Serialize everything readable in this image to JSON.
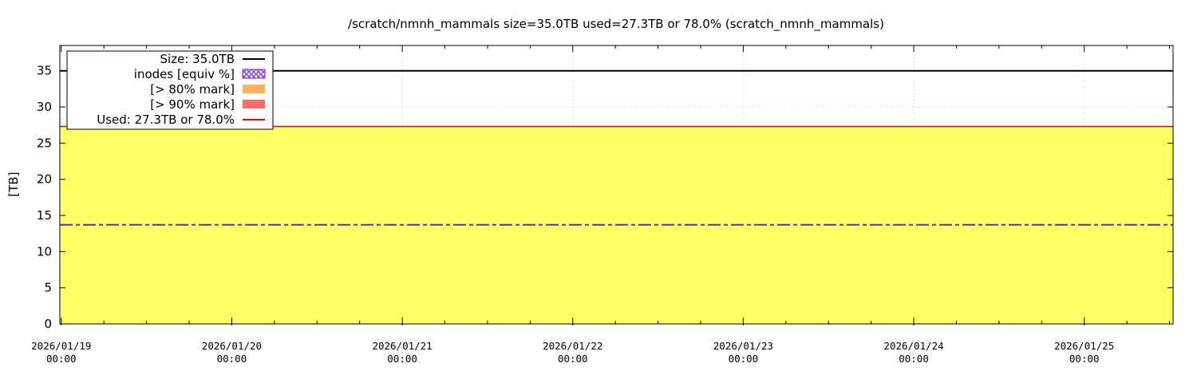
{
  "chart_data": {
    "type": "area",
    "title": "/scratch/nmnh_mammals size=35.0TB used=27.3TB or 78.0% (scratch_nmnh_mammals)",
    "ylabel": "[TB]",
    "xlabel": "",
    "ylim": [
      0,
      38.5
    ],
    "yticks": [
      0,
      5,
      10,
      15,
      20,
      25,
      30,
      35
    ],
    "xlim": [
      "2026/01/18 23:48",
      "2026/01/25 12:30"
    ],
    "xticks": [
      {
        "date": "2026/01/19",
        "time": "00:00",
        "pos": "2026/01/19 00:00"
      },
      {
        "date": "2026/01/20",
        "time": "00:00",
        "pos": "2026/01/20 00:00"
      },
      {
        "date": "2026/01/21",
        "time": "00:00",
        "pos": "2026/01/21 00:00"
      },
      {
        "date": "2026/01/22",
        "time": "00:00",
        "pos": "2026/01/22 00:00"
      },
      {
        "date": "2026/01/23",
        "time": "00:00",
        "pos": "2026/01/23 00:00"
      },
      {
        "date": "2026/01/24",
        "time": "00:00",
        "pos": "2026/01/24 00:00"
      },
      {
        "date": "2026/01/25",
        "time": "00:00",
        "pos": "2026/01/25 00:00"
      }
    ],
    "grid": true,
    "legend_position": "top-left",
    "series": [
      {
        "name": "Size: 35.0TB",
        "kind": "line",
        "color": "#000000",
        "x": [
          "2026/01/18 23:48",
          "2026/01/25 12:30"
        ],
        "y": [
          35.0,
          35.0
        ]
      },
      {
        "name": "Used: 27.3TB or 78.0%",
        "kind": "area-line",
        "color": "#ff0000",
        "fill": "#ffff66",
        "x": [
          "2026/01/18 23:48",
          "2026/01/25 12:30"
        ],
        "y": [
          27.3,
          27.3
        ]
      },
      {
        "name": "inodes [equiv %]",
        "kind": "dash-dot-line",
        "color": "#5533aa",
        "x": [
          "2026/01/18 23:48",
          "2026/01/25 12:30"
        ],
        "y": [
          13.7,
          13.7
        ]
      }
    ],
    "legend": [
      {
        "label": "Size: 35.0TB",
        "swatch": "line",
        "color": "#000000"
      },
      {
        "label": "inodes [equiv %]",
        "swatch": "hatch",
        "color": "#8844dd"
      },
      {
        "label": "[> 80% mark]",
        "swatch": "box",
        "color": "#ffb060"
      },
      {
        "label": "[> 90% mark]",
        "swatch": "box",
        "color": "#ff6a6a"
      },
      {
        "label": "Used: 27.3TB or 78.0%",
        "swatch": "line",
        "color": "#ff0000"
      }
    ]
  }
}
